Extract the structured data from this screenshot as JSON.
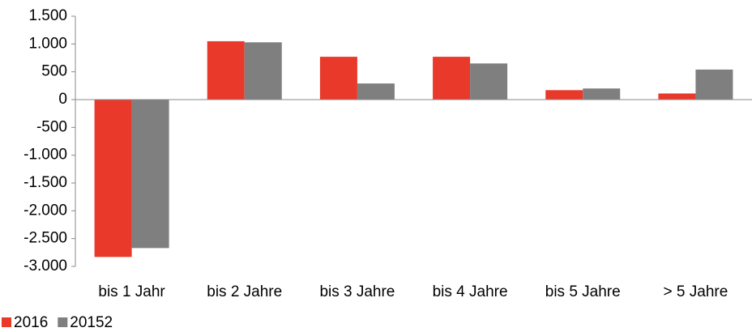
{
  "chart_data": {
    "type": "bar",
    "categories": [
      "bis 1 Jahr",
      "bis 2 Jahre",
      "bis 3 Jahre",
      "bis 4 Jahre",
      "bis 5 Jahre",
      "> 5 Jahre"
    ],
    "series": [
      {
        "name": "2016",
        "color": "#e8392a",
        "values": [
          -2830,
          1050,
          770,
          770,
          170,
          110
        ]
      },
      {
        "name": "20152",
        "color": "#7f7f7f",
        "values": [
          -2670,
          1030,
          290,
          650,
          200,
          540
        ]
      }
    ],
    "ylim": [
      -3000,
      1500
    ],
    "yticks": [
      {
        "value": 1500,
        "label": "1.500"
      },
      {
        "value": 1000,
        "label": "1.000"
      },
      500,
      0,
      -500,
      {
        "value": -1000,
        "label": "-1.000"
      },
      {
        "value": -1500,
        "label": "-1.500"
      },
      {
        "value": -2000,
        "label": "-2.000"
      },
      {
        "value": -2500,
        "label": "-2.500"
      },
      {
        "value": -3000,
        "label": "-3.000"
      }
    ],
    "grid": false,
    "legend": "bottom-left"
  }
}
